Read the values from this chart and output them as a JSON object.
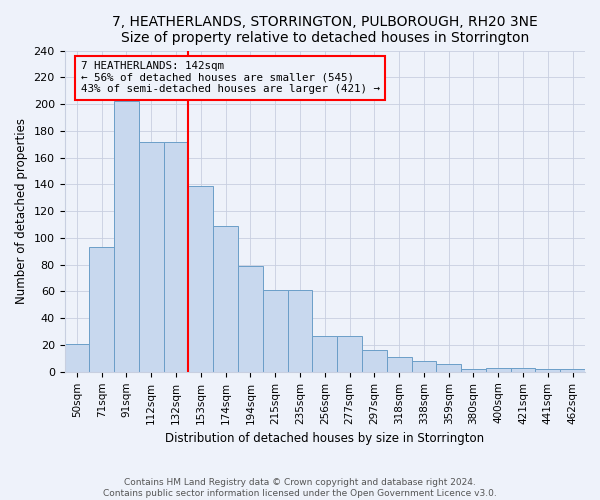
{
  "title": "7, HEATHERLANDS, STORRINGTON, PULBOROUGH, RH20 3NE",
  "subtitle": "Size of property relative to detached houses in Storrington",
  "xlabel": "Distribution of detached houses by size in Storrington",
  "ylabel": "Number of detached properties",
  "bar_labels": [
    "50sqm",
    "71sqm",
    "91sqm",
    "112sqm",
    "132sqm",
    "153sqm",
    "174sqm",
    "194sqm",
    "215sqm",
    "235sqm",
    "256sqm",
    "277sqm",
    "297sqm",
    "318sqm",
    "338sqm",
    "359sqm",
    "380sqm",
    "400sqm",
    "421sqm",
    "441sqm",
    "462sqm"
  ],
  "bar_values": [
    21,
    93,
    202,
    172,
    172,
    139,
    109,
    79,
    61,
    61,
    27,
    27,
    16,
    11,
    8,
    6,
    2,
    3,
    3,
    2,
    2
  ],
  "bar_color": "#c8d8ee",
  "bar_edge_color": "#6b9ec8",
  "vline_index": 4,
  "annotation_line1": "7 HEATHERLANDS: 142sqm",
  "annotation_line2": "← 56% of detached houses are smaller (545)",
  "annotation_line3": "43% of semi-detached houses are larger (421) →",
  "vline_color": "red",
  "annotation_box_edgecolor": "red",
  "ylim": [
    0,
    240
  ],
  "yticks": [
    0,
    20,
    40,
    60,
    80,
    100,
    120,
    140,
    160,
    180,
    200,
    220,
    240
  ],
  "footer_line1": "Contains HM Land Registry data © Crown copyright and database right 2024.",
  "footer_line2": "Contains public sector information licensed under the Open Government Licence v3.0.",
  "background_color": "#eef2fa",
  "grid_color": "#c8cfe0"
}
